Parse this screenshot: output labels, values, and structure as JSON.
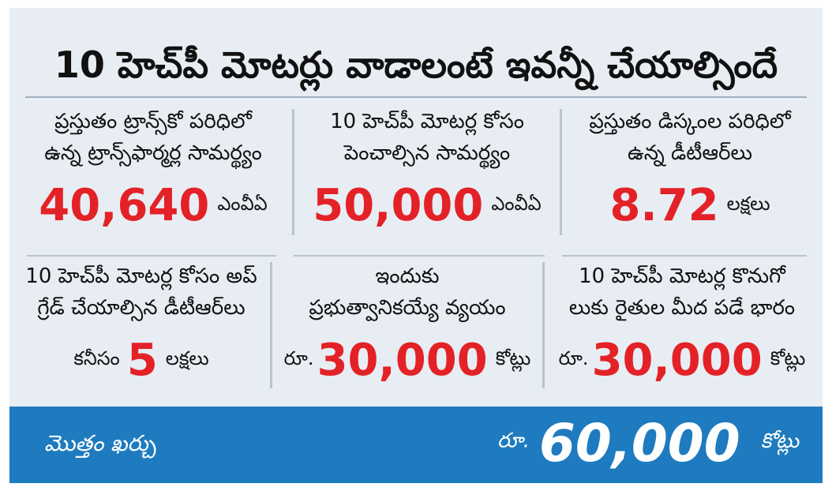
{
  "title": "10 హెచ్‌పీ మోటర్లు వాడాలంటే ఇవన్నీ చేయాల్సిందే",
  "row1": [
    {
      "desc1": "ప్రస్తుతం ట్రాన్స్‌కో పరిధిలో",
      "desc2": "ఉన్న ట్రాన్స్‌ఫార్మర్ల సామర్థ్యం",
      "prefix": "",
      "value": "40,640",
      "unit": "ఎంవీఏ"
    },
    {
      "desc1": "10 హెచ్‌పీ మోటర్ల కోసం",
      "desc2": "పెంచాల్సిన సామర్థ్యం",
      "prefix": "",
      "value": "50,000",
      "unit": "ఎంవీఏ"
    },
    {
      "desc1": "ప్రస్తుతం డిస్కంల పరిధిలో",
      "desc2": "ఉన్న డీటీఆర్‌లు",
      "prefix": "",
      "value": "8.72",
      "unit": "లక్షలు"
    }
  ],
  "row2": [
    {
      "desc1": "10 హెచ్‌పీ మోటర్ల కోసం అప్",
      "desc2": "గ్రేడ్ చేయాల్సిన డీటీఆర్‌లు",
      "prefix": "కనీసం",
      "value": "5",
      "unit": "లక్షలు"
    },
    {
      "desc1": "ఇందుకు",
      "desc2": "ప్రభుత్వానికయ్యే వ్యయం",
      "prefix": "రూ.",
      "value": "30,000",
      "unit": "కోట్లు"
    },
    {
      "desc1": "10 హెచ్‌పీ మోటర్ల కొనుగో",
      "desc2": "లుకు రైతుల మీద పడే భారం",
      "prefix": "రూ.",
      "value": "30,000",
      "unit": "కోట్లు"
    }
  ],
  "footer": {
    "label": "మొత్తం ఖర్చు",
    "prefix": "రూ.",
    "value": "60,000",
    "unit": "కోట్లు"
  },
  "colors": {
    "accent": "#e32227",
    "footer_bg": "#1e7bbf",
    "card_bg": "#e8edf3"
  }
}
